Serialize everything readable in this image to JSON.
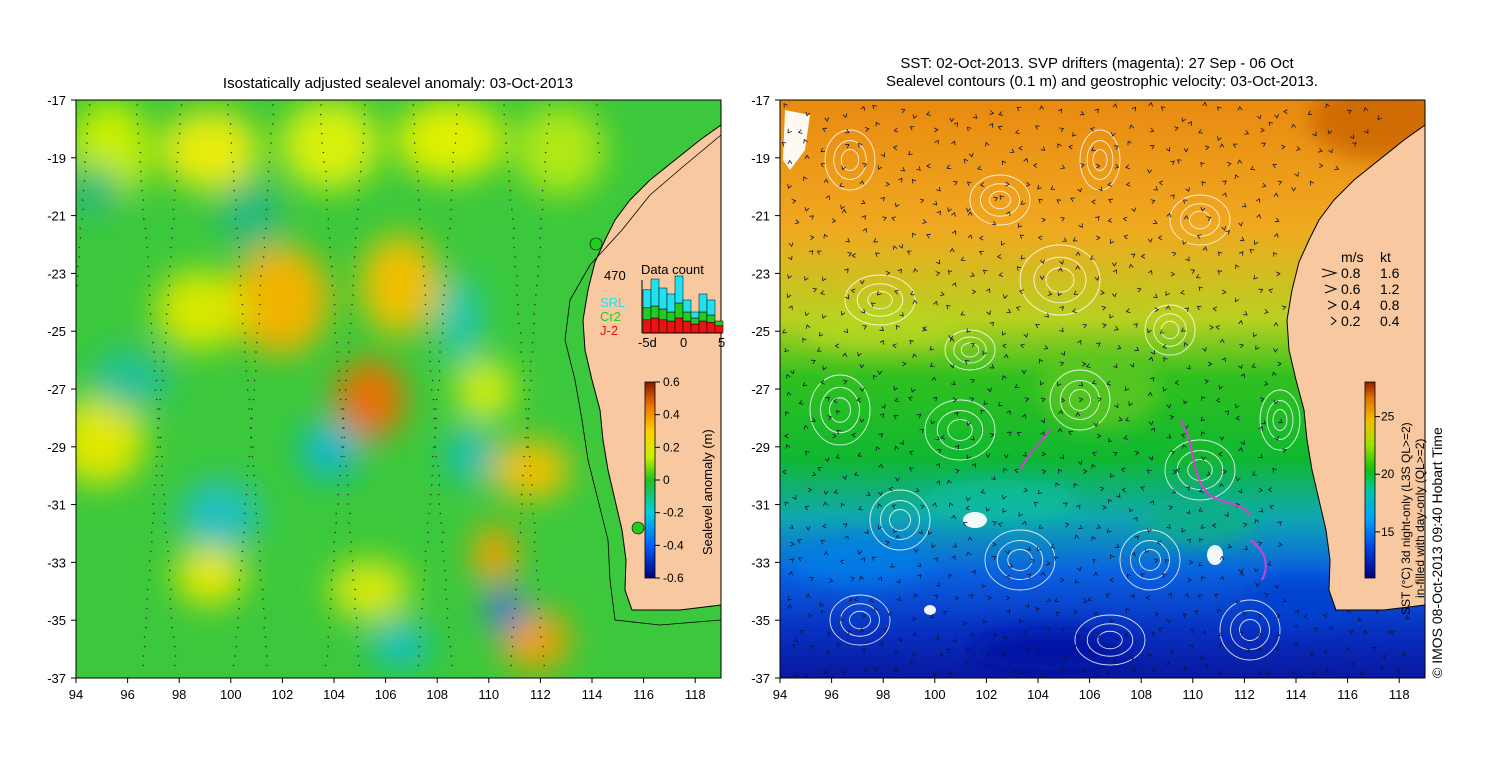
{
  "left_panel": {
    "title": "Isostatically adjusted sealevel anomaly: 03-Oct-2013",
    "x_ticks": [
      "94",
      "96",
      "98",
      "100",
      "102",
      "104",
      "106",
      "108",
      "110",
      "112",
      "114",
      "116",
      "118"
    ],
    "y_ticks": [
      "-17",
      "-19",
      "-21",
      "-23",
      "-25",
      "-27",
      "-29",
      "-31",
      "-33",
      "-35",
      "-37"
    ],
    "colorbar": {
      "label": "Sealevel anomaly (m)",
      "ticks": [
        "0.6",
        "0.4",
        "0.2",
        "0",
        "-0.2",
        "-0.4",
        "-0.6"
      ],
      "range": [
        -0.6,
        0.6
      ]
    },
    "data_count": {
      "title": "Data count",
      "max_label": "470",
      "missions": [
        {
          "name": "SRL",
          "color": "#22e0f0"
        },
        {
          "name": "Cr2",
          "color": "#22cc22"
        },
        {
          "name": "J-2",
          "color": "#ee1111"
        }
      ],
      "x_ticks": [
        "-5d",
        "0",
        "5"
      ],
      "bars": [
        {
          "j2": 0.22,
          "cr2": 0.2,
          "srl": 0.3
        },
        {
          "j2": 0.25,
          "cr2": 0.2,
          "srl": 0.45
        },
        {
          "j2": 0.22,
          "cr2": 0.18,
          "srl": 0.35
        },
        {
          "j2": 0.2,
          "cr2": 0.15,
          "srl": 0.3
        },
        {
          "j2": 0.25,
          "cr2": 0.25,
          "srl": 0.45
        },
        {
          "j2": 0.2,
          "cr2": 0.15,
          "srl": 0.2
        },
        {
          "j2": 0.15,
          "cr2": 0.1,
          "srl": 0.1
        },
        {
          "j2": 0.2,
          "cr2": 0.15,
          "srl": 0.3
        },
        {
          "j2": 0.18,
          "cr2": 0.12,
          "srl": 0.25
        },
        {
          "j2": 0.12,
          "cr2": 0.08,
          "srl": 0.0
        }
      ]
    }
  },
  "right_panel": {
    "title_line1": "SST: 02-Oct-2013. SVP drifters (magenta): 27 Sep - 06 Oct",
    "title_line2": "Sealevel contours (0.1 m) and geostrophic velocity: 03-Oct-2013.",
    "x_ticks": [
      "94",
      "96",
      "98",
      "100",
      "102",
      "104",
      "106",
      "108",
      "110",
      "112",
      "114",
      "116",
      "118"
    ],
    "y_ticks": [
      "-17",
      "-19",
      "-21",
      "-23",
      "-25",
      "-27",
      "-29",
      "-31",
      "-33",
      "-35",
      "-37"
    ],
    "colorbar": {
      "label_line1": "SST (°C) 3d night-only (L3S QL>=2)",
      "label_line2": "in-filled with day-only (QL>=2)",
      "ticks": [
        "25",
        "20",
        "15"
      ],
      "range": [
        11,
        28
      ]
    },
    "velocity_legend": {
      "header_ms": "m/s",
      "header_kt": "kt",
      "rows": [
        {
          "ms": "0.8",
          "kt": "1.6"
        },
        {
          "ms": "0.6",
          "kt": "1.2"
        },
        {
          "ms": "0.4",
          "kt": "0.8"
        },
        {
          "ms": "0.2",
          "kt": "0.4"
        }
      ]
    }
  },
  "credit": "© IMOS 08-Oct-2013 09:40 Hobart Time",
  "colors": {
    "land": "#f8c8a0",
    "coast": "#000000",
    "contour": "#ffffff",
    "vector": "#111133",
    "drifter": "#cc44cc"
  }
}
